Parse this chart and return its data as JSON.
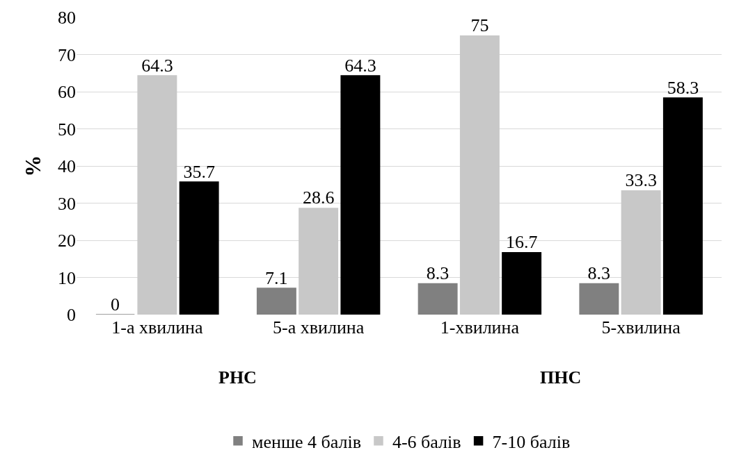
{
  "chart_data": {
    "type": "bar",
    "ylabel": "%",
    "categories": [
      "1-а хвилина",
      "5-а хвилина",
      "1-хвилина",
      "5-хвилина"
    ],
    "series": [
      {
        "name": "менше 4 балів",
        "color": "#808080",
        "values": [
          0,
          7.1,
          8.3,
          8.3
        ]
      },
      {
        "name": "4-6 балів",
        "color": "#c8c8c8",
        "values": [
          64.3,
          28.6,
          75,
          33.3
        ]
      },
      {
        "name": "7-10 балів",
        "color": "#000000",
        "values": [
          35.7,
          64.3,
          16.7,
          58.3
        ]
      }
    ],
    "annotations": [
      "РНС",
      "ПНС"
    ],
    "ylim": [
      0,
      80
    ],
    "yticks": [
      0,
      10,
      20,
      30,
      40,
      50,
      60,
      70,
      80
    ],
    "grid": "y",
    "legend": "bottom",
    "data_labels": true
  }
}
